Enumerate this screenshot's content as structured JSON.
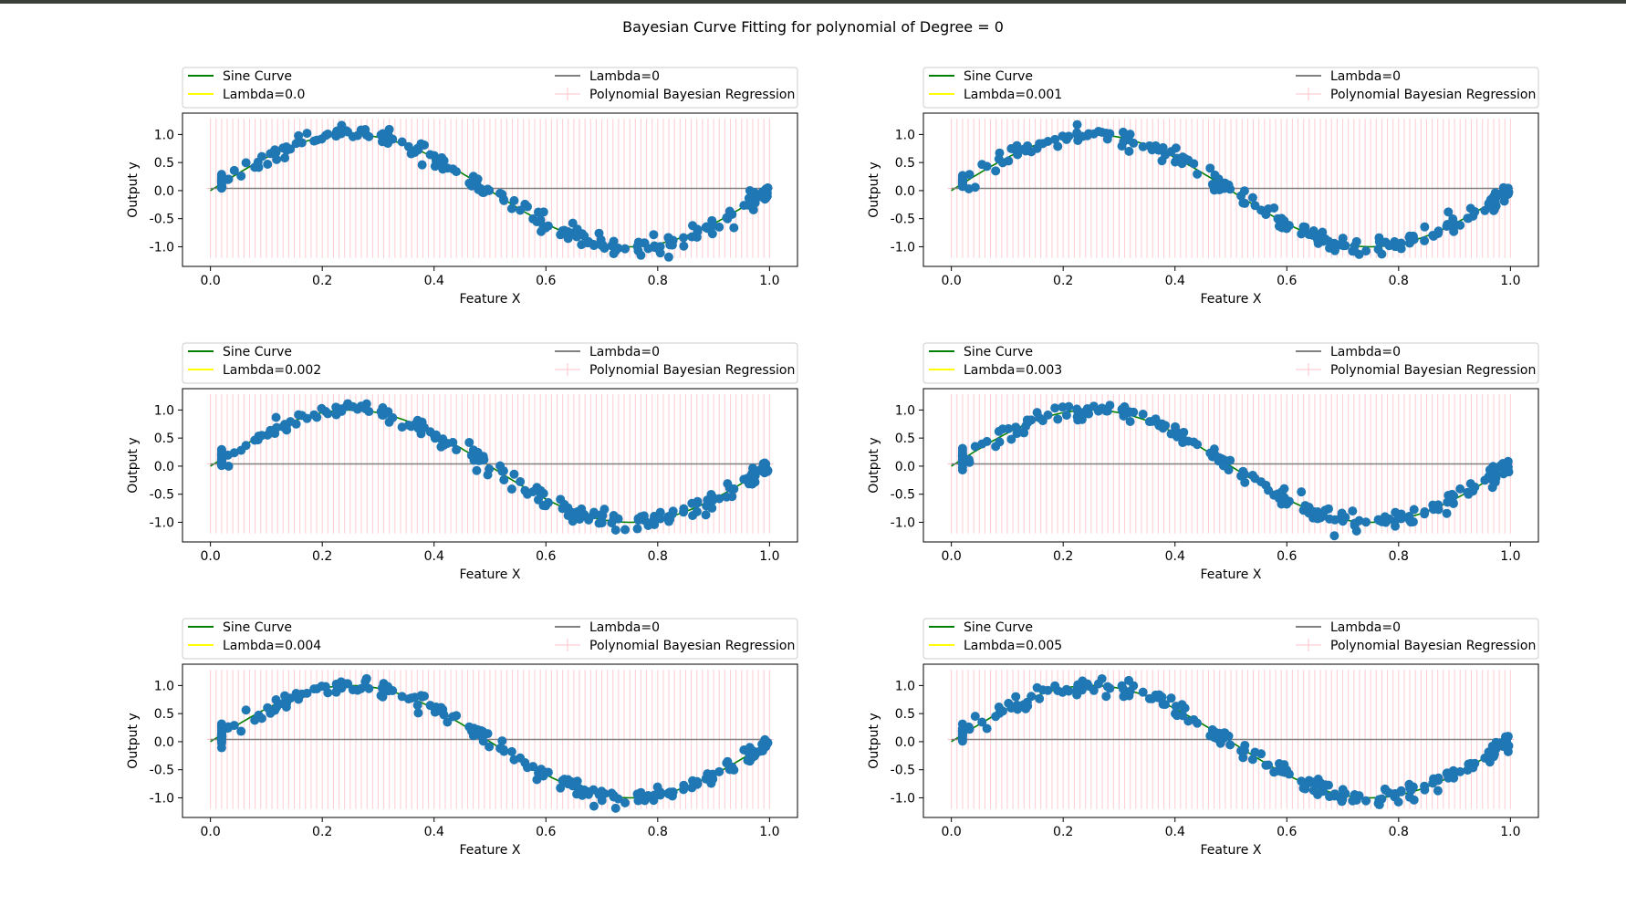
{
  "figure": {
    "title": "Bayesian Curve Fitting for polynomial of Degree = 0"
  },
  "colors": {
    "sine": "#008000",
    "lambda_zero": "#808080",
    "lambda_series": "#ffff00",
    "regression_band": "#ffc0c8",
    "points": "#1f77b4"
  },
  "chart_data": [
    {
      "type": "line",
      "xlabel": "Feature X",
      "ylabel": "Output y",
      "xlim": [
        -0.05,
        1.05
      ],
      "ylim": [
        -1.35,
        1.38
      ],
      "xticks": [
        "0.0",
        "0.2",
        "0.4",
        "0.6",
        "0.8",
        "1.0"
      ],
      "yticks": [
        "1.0",
        "0.5",
        "0.0",
        "-0.5",
        "-1.0"
      ],
      "legend": [
        "Sine Curve",
        "Lambda=0",
        "Lambda=0.0",
        "Polynomial Bayesian Regression"
      ],
      "legend_loc": "top",
      "series": [
        {
          "name": "Sine Curve",
          "values": "sin(2*pi*x)",
          "x_range": [
            0,
            1
          ]
        },
        {
          "name": "Lambda=0",
          "y": 0.04
        },
        {
          "name": "Lambda=0.0",
          "y": 0.04
        },
        {
          "name": "Polynomial Bayesian Regression",
          "mean": 0.04,
          "upper": 1.28,
          "lower": -1.2
        }
      ]
    },
    {
      "type": "line",
      "xlabel": "Feature X",
      "ylabel": "Output y",
      "xlim": [
        -0.05,
        1.05
      ],
      "ylim": [
        -1.35,
        1.38
      ],
      "xticks": [
        "0.0",
        "0.2",
        "0.4",
        "0.6",
        "0.8",
        "1.0"
      ],
      "yticks": [
        "1.0",
        "0.5",
        "0.0",
        "-0.5",
        "-1.0"
      ],
      "legend": [
        "Sine Curve",
        "Lambda=0",
        "Lambda=0.001",
        "Polynomial Bayesian Regression"
      ],
      "legend_loc": "top",
      "series": [
        {
          "name": "Sine Curve",
          "values": "sin(2*pi*x)",
          "x_range": [
            0,
            1
          ]
        },
        {
          "name": "Lambda=0",
          "y": 0.04
        },
        {
          "name": "Lambda=0.001",
          "y": 0.04
        },
        {
          "name": "Polynomial Bayesian Regression",
          "mean": 0.04,
          "upper": 1.28,
          "lower": -1.2
        }
      ]
    },
    {
      "type": "line",
      "xlabel": "Feature X",
      "ylabel": "Output y",
      "xlim": [
        -0.05,
        1.05
      ],
      "ylim": [
        -1.35,
        1.38
      ],
      "xticks": [
        "0.0",
        "0.2",
        "0.4",
        "0.6",
        "0.8",
        "1.0"
      ],
      "yticks": [
        "1.0",
        "0.5",
        "0.0",
        "-0.5",
        "-1.0"
      ],
      "legend": [
        "Sine Curve",
        "Lambda=0",
        "Lambda=0.002",
        "Polynomial Bayesian Regression"
      ],
      "legend_loc": "top",
      "series": [
        {
          "name": "Sine Curve",
          "values": "sin(2*pi*x)",
          "x_range": [
            0,
            1
          ]
        },
        {
          "name": "Lambda=0",
          "y": 0.04
        },
        {
          "name": "Lambda=0.002",
          "y": 0.04
        },
        {
          "name": "Polynomial Bayesian Regression",
          "mean": 0.04,
          "upper": 1.28,
          "lower": -1.2
        }
      ]
    },
    {
      "type": "line",
      "xlabel": "Feature X",
      "ylabel": "Output y",
      "xlim": [
        -0.05,
        1.05
      ],
      "ylim": [
        -1.35,
        1.38
      ],
      "xticks": [
        "0.0",
        "0.2",
        "0.4",
        "0.6",
        "0.8",
        "1.0"
      ],
      "yticks": [
        "1.0",
        "0.5",
        "0.0",
        "-0.5",
        "-1.0"
      ],
      "legend": [
        "Sine Curve",
        "Lambda=0",
        "Lambda=0.003",
        "Polynomial Bayesian Regression"
      ],
      "legend_loc": "top",
      "series": [
        {
          "name": "Sine Curve",
          "values": "sin(2*pi*x)",
          "x_range": [
            0,
            1
          ]
        },
        {
          "name": "Lambda=0",
          "y": 0.04
        },
        {
          "name": "Lambda=0.003",
          "y": 0.04
        },
        {
          "name": "Polynomial Bayesian Regression",
          "mean": 0.04,
          "upper": 1.28,
          "lower": -1.2
        }
      ]
    },
    {
      "type": "line",
      "xlabel": "Feature X",
      "ylabel": "Output y",
      "xlim": [
        -0.05,
        1.05
      ],
      "ylim": [
        -1.35,
        1.38
      ],
      "xticks": [
        "0.0",
        "0.2",
        "0.4",
        "0.6",
        "0.8",
        "1.0"
      ],
      "yticks": [
        "1.0",
        "0.5",
        "0.0",
        "-0.5",
        "-1.0"
      ],
      "legend": [
        "Sine Curve",
        "Lambda=0",
        "Lambda=0.004",
        "Polynomial Bayesian Regression"
      ],
      "legend_loc": "top",
      "series": [
        {
          "name": "Sine Curve",
          "values": "sin(2*pi*x)",
          "x_range": [
            0,
            1
          ]
        },
        {
          "name": "Lambda=0",
          "y": 0.04
        },
        {
          "name": "Lambda=0.004",
          "y": 0.04
        },
        {
          "name": "Polynomial Bayesian Regression",
          "mean": 0.04,
          "upper": 1.28,
          "lower": -1.2
        }
      ]
    },
    {
      "type": "line",
      "xlabel": "Feature X",
      "ylabel": "Output y",
      "xlim": [
        -0.05,
        1.05
      ],
      "ylim": [
        -1.35,
        1.38
      ],
      "xticks": [
        "0.0",
        "0.2",
        "0.4",
        "0.6",
        "0.8",
        "1.0"
      ],
      "yticks": [
        "1.0",
        "0.5",
        "0.0",
        "-0.5",
        "-1.0"
      ],
      "legend": [
        "Sine Curve",
        "Lambda=0",
        "Lambda=0.005",
        "Polynomial Bayesian Regression"
      ],
      "legend_loc": "top",
      "series": [
        {
          "name": "Sine Curve",
          "values": "sin(2*pi*x)",
          "x_range": [
            0,
            1
          ]
        },
        {
          "name": "Lambda=0",
          "y": 0.04
        },
        {
          "name": "Lambda=0.005",
          "y": 0.04
        },
        {
          "name": "Polynomial Bayesian Regression",
          "mean": 0.04,
          "upper": 1.28,
          "lower": -1.2
        }
      ]
    }
  ]
}
